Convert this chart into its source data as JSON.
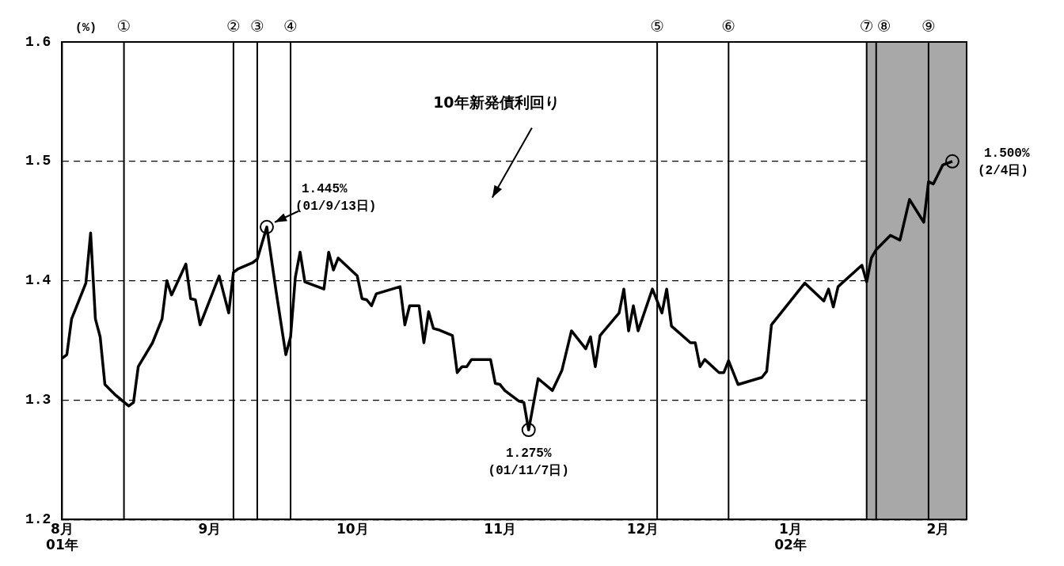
{
  "chart_data": {
    "type": "line",
    "ylabel": "(%)",
    "x": [
      "2001-08-01",
      "2001-08-02",
      "2001-08-03",
      "2001-08-06",
      "2001-08-07",
      "2001-08-08",
      "2001-08-09",
      "2001-08-10",
      "2001-08-12",
      "2001-08-15",
      "2001-08-16",
      "2001-08-17",
      "2001-08-20",
      "2001-08-22",
      "2001-08-23",
      "2001-08-24",
      "2001-08-27",
      "2001-08-28",
      "2001-08-29",
      "2001-08-30",
      "2001-09-03",
      "2001-09-05",
      "2001-09-06",
      "2001-09-07",
      "2001-09-10",
      "2001-09-11",
      "2001-09-13",
      "2001-09-15",
      "2001-09-17",
      "2001-09-18",
      "2001-09-19",
      "2001-09-20",
      "2001-09-21",
      "2001-09-25",
      "2001-09-26",
      "2001-09-27",
      "2001-09-28",
      "2001-10-02",
      "2001-10-03",
      "2001-10-04",
      "2001-10-05",
      "2001-10-06",
      "2001-10-11",
      "2001-10-12",
      "2001-10-13",
      "2001-10-15",
      "2001-10-16",
      "2001-10-17",
      "2001-10-18",
      "2001-10-19",
      "2001-10-22",
      "2001-10-23",
      "2001-10-24",
      "2001-10-25",
      "2001-10-26",
      "2001-10-30",
      "2001-10-31",
      "2001-11-01",
      "2001-11-02",
      "2001-11-05",
      "2001-11-06",
      "2001-11-07",
      "2001-11-09",
      "2001-11-12",
      "2001-11-14",
      "2001-11-16",
      "2001-11-19",
      "2001-11-20",
      "2001-11-21",
      "2001-11-22",
      "2001-11-26",
      "2001-11-27",
      "2001-11-28",
      "2001-11-29",
      "2001-11-30",
      "2001-12-03",
      "2001-12-05",
      "2001-12-06",
      "2001-12-07",
      "2001-12-11",
      "2001-12-12",
      "2001-12-13",
      "2001-12-14",
      "2001-12-17",
      "2001-12-18",
      "2001-12-19",
      "2001-12-21",
      "2001-12-26",
      "2001-12-27",
      "2001-12-28",
      "2002-01-04",
      "2002-01-08",
      "2002-01-09",
      "2002-01-10",
      "2002-01-11",
      "2002-01-16",
      "2002-01-17",
      "2002-01-18",
      "2002-01-19",
      "2002-01-22",
      "2002-01-24",
      "2002-01-26",
      "2002-01-29",
      "2002-01-30",
      "2002-01-31",
      "2002-02-02",
      "2002-02-04"
    ],
    "series": [
      {
        "name": "10年新発債利回り",
        "color": "#000000",
        "values": [
          1.335,
          1.338,
          1.368,
          1.398,
          1.44,
          1.368,
          1.353,
          1.313,
          1.305,
          1.295,
          1.298,
          1.328,
          1.348,
          1.368,
          1.4,
          1.388,
          1.414,
          1.385,
          1.384,
          1.363,
          1.404,
          1.373,
          1.407,
          1.41,
          1.415,
          1.418,
          1.445,
          1.39,
          1.338,
          1.353,
          1.403,
          1.424,
          1.399,
          1.393,
          1.424,
          1.409,
          1.419,
          1.404,
          1.385,
          1.384,
          1.379,
          1.389,
          1.395,
          1.363,
          1.379,
          1.379,
          1.348,
          1.374,
          1.36,
          1.359,
          1.354,
          1.323,
          1.328,
          1.328,
          1.334,
          1.334,
          1.314,
          1.313,
          1.308,
          1.299,
          1.298,
          1.275,
          1.318,
          1.308,
          1.325,
          1.358,
          1.343,
          1.353,
          1.328,
          1.354,
          1.373,
          1.393,
          1.358,
          1.379,
          1.358,
          1.393,
          1.373,
          1.393,
          1.362,
          1.348,
          1.348,
          1.328,
          1.334,
          1.323,
          1.323,
          1.333,
          1.313,
          1.319,
          1.324,
          1.363,
          1.398,
          1.383,
          1.393,
          1.378,
          1.395,
          1.413,
          1.399,
          1.419,
          1.426,
          1.438,
          1.434,
          1.468,
          1.449,
          1.483,
          1.481,
          1.497,
          1.5
        ]
      }
    ],
    "xlim": [
      "2001-08-01",
      "2002-02-07"
    ],
    "xticks": [
      {
        "value": "2001-08-01",
        "label": "8月\n01年"
      },
      {
        "value": "2001-09-01",
        "label": "9月"
      },
      {
        "value": "2001-10-01",
        "label": "10月"
      },
      {
        "value": "2001-11-01",
        "label": "11月"
      },
      {
        "value": "2001-12-01",
        "label": "12月"
      },
      {
        "value": "2002-01-01",
        "label": "1月\n02年"
      },
      {
        "value": "2002-02-01",
        "label": "2月"
      }
    ],
    "ylim": [
      1.2,
      1.6
    ],
    "yticks": [
      1.2,
      1.3,
      1.4,
      1.5,
      1.6
    ],
    "grid": "y",
    "legend": false,
    "marker": "none",
    "line_style": "solid",
    "ref_lines": [
      {
        "axis": "x",
        "value": "2001-08-14",
        "label": "①",
        "color": "#000000"
      },
      {
        "axis": "x",
        "value": "2001-09-06",
        "label": "②",
        "color": "#000000"
      },
      {
        "axis": "x",
        "value": "2001-09-11",
        "label": "③",
        "color": "#000000"
      },
      {
        "axis": "x",
        "value": "2001-09-18",
        "label": "④",
        "color": "#000000"
      },
      {
        "axis": "x",
        "value": "2001-12-04",
        "label": "⑤",
        "color": "#000000"
      },
      {
        "axis": "x",
        "value": "2001-12-19",
        "label": "⑥",
        "color": "#000000"
      },
      {
        "axis": "x",
        "value": "2002-01-17",
        "label": "⑦",
        "color": "#000000"
      },
      {
        "axis": "x",
        "value": "2002-01-19",
        "label": "⑧",
        "color": "#000000"
      },
      {
        "axis": "x",
        "value": "2002-01-30",
        "label": "⑨",
        "color": "#000000"
      }
    ],
    "bands": [
      {
        "axis": "x",
        "from": "2002-01-17",
        "to": "2002-02-07",
        "color": "#a8a8a8"
      }
    ],
    "annotations": [
      {
        "text": "1.445%\n(01/9/13日)",
        "x": "2001-09-13",
        "y": 1.445
      },
      {
        "text": "1.275%\n(01/11/7日)",
        "x": "2001-11-07",
        "y": 1.275
      },
      {
        "text": "1.500%\n(2/4日)",
        "x": "2002-02-04",
        "y": 1.5
      }
    ]
  }
}
